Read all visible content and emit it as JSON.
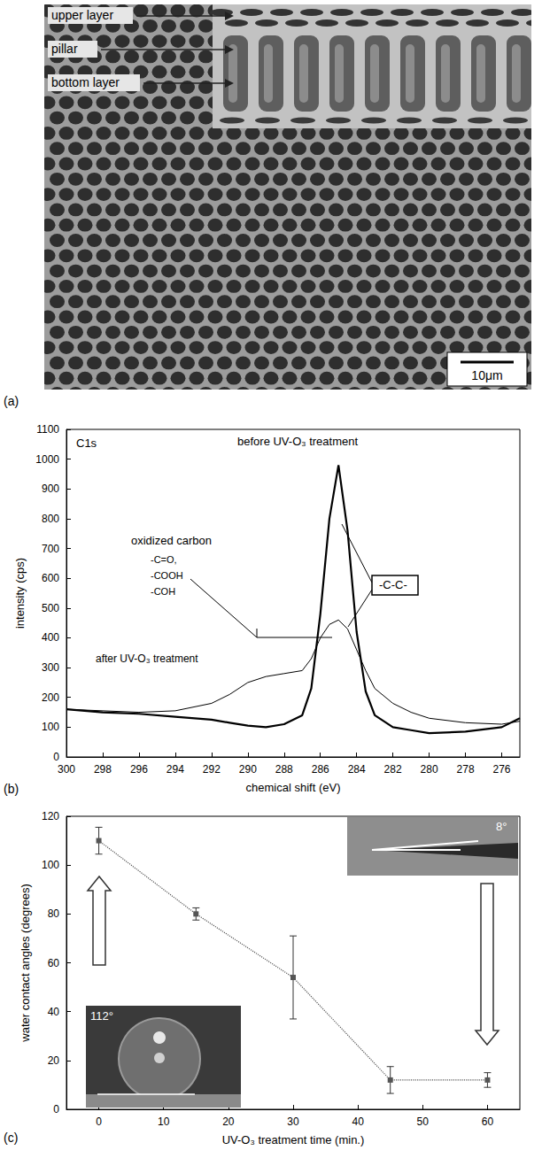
{
  "panel_a": {
    "panel_label": "(a)",
    "labels": [
      "upper layer",
      "pillar",
      "bottom layer"
    ],
    "scale_bar": "10μm"
  },
  "chart_data": [
    {
      "type": "line",
      "panel_label": "(b)",
      "x_label": "chemical shift (eV)",
      "y_label": "intensity (cps)",
      "annotations": {
        "element": "C1s",
        "before": "before UV-O₃ treatment",
        "after": "after UV-O₃ treatment",
        "oxidized": "oxidized carbon",
        "oxidized_groups": [
          "-C=O,",
          "-COOH",
          "-COH"
        ],
        "peak": "-C-C-"
      },
      "x": [
        300,
        298,
        296,
        294,
        292,
        291,
        290,
        289,
        288,
        287,
        286.5,
        286,
        285.5,
        285,
        284.5,
        284,
        283.5,
        283,
        282,
        281,
        280,
        278,
        276,
        275
      ],
      "series": [
        {
          "values": [
            160,
            150,
            145,
            135,
            125,
            115,
            105,
            100,
            110,
            140,
            230,
            480,
            800,
            980,
            760,
            420,
            220,
            140,
            100,
            90,
            80,
            85,
            100,
            130
          ],
          "color": "#000000",
          "line_style": "solid"
        },
        {
          "values": [
            160,
            155,
            150,
            155,
            180,
            210,
            250,
            270,
            280,
            290,
            330,
            400,
            445,
            460,
            430,
            360,
            290,
            230,
            180,
            150,
            130,
            115,
            110,
            120
          ],
          "color": "#000000",
          "line_style": "solid"
        }
      ],
      "xlim": [
        300,
        275
      ],
      "xticks": [
        300,
        298,
        296,
        294,
        292,
        290,
        288,
        286,
        284,
        282,
        280,
        278,
        276
      ],
      "ylim": [
        0,
        1100
      ],
      "yticks": [
        0,
        100,
        200,
        300,
        400,
        500,
        600,
        700,
        800,
        900,
        1000,
        1100
      ],
      "grid": false
    },
    {
      "type": "line",
      "panel_label": "(c)",
      "x_label": "UV-O₃ treatment time (min.)",
      "y_label": "water contact angles (degrees)",
      "annotations": {
        "inset_left": "112°",
        "inset_right": "8°"
      },
      "x": [
        0,
        15,
        30,
        45,
        60
      ],
      "values": [
        110,
        80,
        54,
        12,
        12
      ],
      "yerr": [
        5.5,
        2.5,
        17,
        5.5,
        3
      ],
      "color": "#555555",
      "marker": "square",
      "line_style": "dotted",
      "xlim": [
        -5,
        65
      ],
      "xticks": [
        0,
        10,
        20,
        30,
        40,
        50,
        60
      ],
      "ylim": [
        0,
        120
      ],
      "yticks": [
        0,
        20,
        40,
        60,
        80,
        100,
        120
      ],
      "grid": false
    }
  ]
}
